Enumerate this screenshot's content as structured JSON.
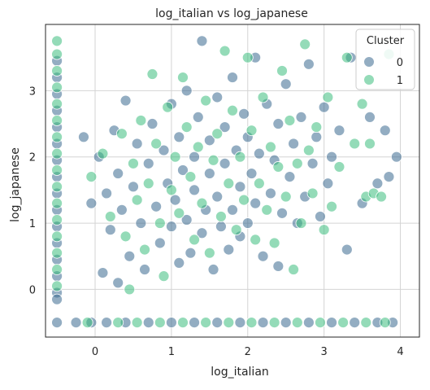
{
  "chart_data": {
    "type": "scatter",
    "title": "log_italian vs log_japanese",
    "xlabel": "log_italian",
    "ylabel": "log_japanese",
    "xlim": [
      -0.65,
      4.25
    ],
    "ylim": [
      -0.72,
      4.0
    ],
    "xticks": [
      0,
      1,
      2,
      3,
      4
    ],
    "yticks": [
      0,
      1,
      2,
      3
    ],
    "grid": true,
    "legend": {
      "title": "Cluster",
      "placement": "top-right",
      "entries": [
        "0",
        "1"
      ]
    },
    "series": [
      {
        "name": "0",
        "color": "#3b6a8f",
        "points": [
          [
            -0.5,
            3.45
          ],
          [
            -0.5,
            3.2
          ],
          [
            -0.5,
            2.95
          ],
          [
            -0.5,
            2.7
          ],
          [
            -0.5,
            2.45
          ],
          [
            -0.5,
            2.2
          ],
          [
            -0.5,
            1.95
          ],
          [
            -0.5,
            1.7
          ],
          [
            -0.5,
            1.45
          ],
          [
            -0.5,
            1.2
          ],
          [
            -0.5,
            0.95
          ],
          [
            -0.5,
            0.7
          ],
          [
            -0.5,
            0.45
          ],
          [
            -0.5,
            0.2
          ],
          [
            -0.5,
            -0.05
          ],
          [
            -0.5,
            -0.15
          ],
          [
            -0.5,
            -0.5
          ],
          [
            -0.25,
            -0.5
          ],
          [
            -0.05,
            -0.5
          ],
          [
            0.15,
            -0.5
          ],
          [
            0.4,
            -0.5
          ],
          [
            0.7,
            -0.5
          ],
          [
            1.0,
            -0.5
          ],
          [
            1.3,
            -0.5
          ],
          [
            1.6,
            -0.5
          ],
          [
            1.9,
            -0.5
          ],
          [
            2.2,
            -0.5
          ],
          [
            2.5,
            -0.5
          ],
          [
            2.8,
            -0.5
          ],
          [
            3.1,
            -0.5
          ],
          [
            3.4,
            -0.5
          ],
          [
            3.7,
            -0.5
          ],
          [
            3.9,
            -0.5
          ],
          [
            -0.15,
            2.3
          ],
          [
            -0.05,
            1.3
          ],
          [
            0.05,
            2.0
          ],
          [
            0.1,
            0.25
          ],
          [
            0.15,
            1.45
          ],
          [
            0.2,
            0.9
          ],
          [
            0.25,
            2.4
          ],
          [
            0.3,
            0.1
          ],
          [
            0.3,
            1.75
          ],
          [
            0.35,
            1.2
          ],
          [
            0.4,
            2.85
          ],
          [
            0.45,
            0.5
          ],
          [
            0.5,
            1.55
          ],
          [
            0.55,
            2.2
          ],
          [
            0.6,
            1.0
          ],
          [
            0.65,
            0.3
          ],
          [
            0.7,
            1.9
          ],
          [
            0.75,
            2.5
          ],
          [
            0.8,
            1.25
          ],
          [
            0.85,
            0.7
          ],
          [
            0.9,
            2.1
          ],
          [
            0.95,
            1.6
          ],
          [
            1.0,
            0.95
          ],
          [
            1.0,
            2.8
          ],
          [
            1.05,
            1.35
          ],
          [
            1.1,
            0.4
          ],
          [
            1.1,
            2.3
          ],
          [
            1.15,
            1.8
          ],
          [
            1.2,
            1.05
          ],
          [
            1.2,
            3.0
          ],
          [
            1.25,
            0.55
          ],
          [
            1.3,
            2.0
          ],
          [
            1.3,
            1.5
          ],
          [
            1.35,
            2.6
          ],
          [
            1.4,
            0.85
          ],
          [
            1.4,
            3.75
          ],
          [
            1.45,
            1.2
          ],
          [
            1.5,
            2.25
          ],
          [
            1.5,
            1.75
          ],
          [
            1.55,
            0.3
          ],
          [
            1.6,
            2.9
          ],
          [
            1.6,
            1.4
          ],
          [
            1.65,
            0.95
          ],
          [
            1.7,
            2.45
          ],
          [
            1.7,
            1.9
          ],
          [
            1.75,
            0.6
          ],
          [
            1.8,
            1.2
          ],
          [
            1.8,
            3.2
          ],
          [
            1.85,
            2.1
          ],
          [
            1.9,
            1.55
          ],
          [
            1.9,
            0.8
          ],
          [
            1.95,
            2.65
          ],
          [
            2.0,
            1.0
          ],
          [
            2.0,
            2.3
          ],
          [
            2.05,
            1.75
          ],
          [
            2.1,
            3.5
          ],
          [
            2.1,
            1.3
          ],
          [
            2.15,
            2.05
          ],
          [
            2.2,
            0.5
          ],
          [
            2.25,
            2.8
          ],
          [
            2.3,
            1.45
          ],
          [
            2.35,
            1.95
          ],
          [
            2.4,
            2.5
          ],
          [
            2.4,
            0.35
          ],
          [
            2.45,
            1.15
          ],
          [
            2.5,
            3.1
          ],
          [
            2.55,
            1.7
          ],
          [
            2.6,
            2.2
          ],
          [
            2.65,
            1.0
          ],
          [
            2.7,
            2.6
          ],
          [
            2.75,
            1.4
          ],
          [
            2.8,
            3.4
          ],
          [
            2.85,
            1.9
          ],
          [
            2.9,
            2.3
          ],
          [
            2.95,
            1.1
          ],
          [
            3.0,
            2.75
          ],
          [
            3.05,
            1.6
          ],
          [
            3.1,
            2.0
          ],
          [
            3.2,
            2.4
          ],
          [
            3.3,
            0.6
          ],
          [
            3.35,
            3.5
          ],
          [
            3.5,
            1.3
          ],
          [
            3.6,
            2.6
          ],
          [
            3.7,
            1.6
          ],
          [
            3.8,
            2.4
          ],
          [
            3.85,
            1.7
          ],
          [
            3.95,
            2.0
          ]
        ]
      },
      {
        "name": "1",
        "color": "#3dbd7d",
        "points": [
          [
            -0.5,
            3.75
          ],
          [
            -0.5,
            3.55
          ],
          [
            -0.5,
            3.3
          ],
          [
            -0.5,
            3.05
          ],
          [
            -0.5,
            2.8
          ],
          [
            -0.5,
            2.55
          ],
          [
            -0.5,
            2.3
          ],
          [
            -0.5,
            2.05
          ],
          [
            -0.5,
            1.8
          ],
          [
            -0.5,
            1.55
          ],
          [
            -0.5,
            1.3
          ],
          [
            -0.5,
            1.05
          ],
          [
            -0.5,
            0.8
          ],
          [
            -0.5,
            0.55
          ],
          [
            -0.5,
            0.3
          ],
          [
            -0.5,
            0.05
          ],
          [
            -0.1,
            -0.5
          ],
          [
            0.3,
            -0.5
          ],
          [
            0.55,
            -0.5
          ],
          [
            0.85,
            -0.5
          ],
          [
            1.15,
            -0.5
          ],
          [
            1.45,
            -0.5
          ],
          [
            1.75,
            -0.5
          ],
          [
            2.05,
            -0.5
          ],
          [
            2.35,
            -0.5
          ],
          [
            2.65,
            -0.5
          ],
          [
            2.95,
            -0.5
          ],
          [
            3.25,
            -0.5
          ],
          [
            3.55,
            -0.5
          ],
          [
            3.8,
            -0.5
          ],
          [
            -0.05,
            1.7
          ],
          [
            0.1,
            2.05
          ],
          [
            0.2,
            1.1
          ],
          [
            0.35,
            2.35
          ],
          [
            0.4,
            0.8
          ],
          [
            0.45,
            0.0
          ],
          [
            0.5,
            1.9
          ],
          [
            0.55,
            1.35
          ],
          [
            0.6,
            2.55
          ],
          [
            0.65,
            0.6
          ],
          [
            0.7,
            1.6
          ],
          [
            0.75,
            3.25
          ],
          [
            0.8,
            2.2
          ],
          [
            0.85,
            1.0
          ],
          [
            0.9,
            0.2
          ],
          [
            0.95,
            2.75
          ],
          [
            1.0,
            1.5
          ],
          [
            1.05,
            2.0
          ],
          [
            1.1,
            1.15
          ],
          [
            1.15,
            3.2
          ],
          [
            1.2,
            2.45
          ],
          [
            1.25,
            1.7
          ],
          [
            1.3,
            0.75
          ],
          [
            1.35,
            2.15
          ],
          [
            1.4,
            1.3
          ],
          [
            1.45,
            2.85
          ],
          [
            1.5,
            0.55
          ],
          [
            1.55,
            1.95
          ],
          [
            1.6,
            2.35
          ],
          [
            1.65,
            1.1
          ],
          [
            1.7,
            3.6
          ],
          [
            1.75,
            1.6
          ],
          [
            1.8,
            2.7
          ],
          [
            1.85,
            0.9
          ],
          [
            1.9,
            2.0
          ],
          [
            1.95,
            1.35
          ],
          [
            2.0,
            3.5
          ],
          [
            2.05,
            2.4
          ],
          [
            2.1,
            0.75
          ],
          [
            2.15,
            1.6
          ],
          [
            2.2,
            2.9
          ],
          [
            2.25,
            1.2
          ],
          [
            2.3,
            2.15
          ],
          [
            2.35,
            0.7
          ],
          [
            2.4,
            1.85
          ],
          [
            2.45,
            3.3
          ],
          [
            2.5,
            1.4
          ],
          [
            2.55,
            2.55
          ],
          [
            2.6,
            0.3
          ],
          [
            2.65,
            1.9
          ],
          [
            2.7,
            1.0
          ],
          [
            2.75,
            3.7
          ],
          [
            2.8,
            2.1
          ],
          [
            2.85,
            1.45
          ],
          [
            2.9,
            2.45
          ],
          [
            3.0,
            0.9
          ],
          [
            3.05,
            2.9
          ],
          [
            3.1,
            1.25
          ],
          [
            3.2,
            1.85
          ],
          [
            3.3,
            3.5
          ],
          [
            3.4,
            2.2
          ],
          [
            3.5,
            2.8
          ],
          [
            3.55,
            1.4
          ],
          [
            3.6,
            2.2
          ],
          [
            3.65,
            1.45
          ],
          [
            3.75,
            1.4
          ],
          [
            3.85,
            3.55
          ]
        ]
      }
    ]
  }
}
